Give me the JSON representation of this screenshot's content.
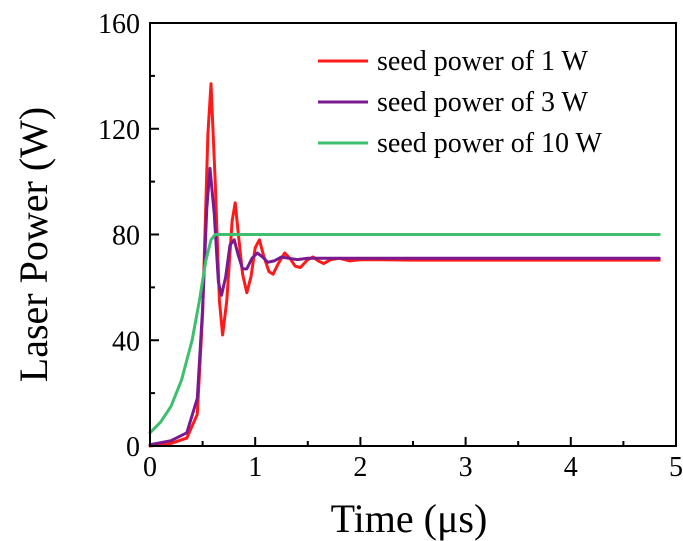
{
  "chart_data": {
    "type": "line",
    "title": "",
    "xlabel": "Time (μs)",
    "ylabel": "Laser Power (W)",
    "xlim": [
      0,
      5
    ],
    "ylim": [
      0,
      160
    ],
    "xticks": [
      0,
      1,
      2,
      3,
      4,
      5
    ],
    "yticks": [
      0,
      40,
      80,
      120,
      160
    ],
    "xtick_labels": [
      "0",
      "1",
      "2",
      "3",
      "4",
      "5"
    ],
    "ytick_labels": [
      "0",
      "40",
      "80",
      "120",
      "160"
    ],
    "grid": false,
    "legend_position": "top-right",
    "series": [
      {
        "name": "seed power of 1 W",
        "color": "#ff1a1a",
        "points": [
          [
            0,
            0
          ],
          [
            0.2,
            1
          ],
          [
            0.35,
            3
          ],
          [
            0.45,
            12
          ],
          [
            0.5,
            50
          ],
          [
            0.55,
            118
          ],
          [
            0.58,
            137
          ],
          [
            0.62,
            100
          ],
          [
            0.66,
            55
          ],
          [
            0.69,
            42
          ],
          [
            0.73,
            55
          ],
          [
            0.78,
            85
          ],
          [
            0.81,
            92
          ],
          [
            0.84,
            80
          ],
          [
            0.88,
            65
          ],
          [
            0.92,
            58
          ],
          [
            0.96,
            64
          ],
          [
            1.0,
            75
          ],
          [
            1.04,
            78
          ],
          [
            1.08,
            72
          ],
          [
            1.13,
            66
          ],
          [
            1.17,
            65
          ],
          [
            1.22,
            69
          ],
          [
            1.28,
            73
          ],
          [
            1.33,
            71
          ],
          [
            1.38,
            68
          ],
          [
            1.43,
            67.5
          ],
          [
            1.5,
            70.5
          ],
          [
            1.55,
            71.5
          ],
          [
            1.6,
            70
          ],
          [
            1.65,
            69
          ],
          [
            1.72,
            70.5
          ],
          [
            1.8,
            71
          ],
          [
            1.9,
            70
          ],
          [
            2.0,
            70.5
          ],
          [
            2.5,
            70.3
          ],
          [
            3.0,
            70.3
          ],
          [
            3.5,
            70.3
          ],
          [
            4.0,
            70.3
          ],
          [
            4.5,
            70.3
          ],
          [
            4.84,
            70.3
          ]
        ]
      },
      {
        "name": "seed power of 3 W",
        "color": "#7a1a8e",
        "points": [
          [
            0,
            0.5
          ],
          [
            0.2,
            2
          ],
          [
            0.35,
            5
          ],
          [
            0.45,
            18
          ],
          [
            0.5,
            52
          ],
          [
            0.54,
            90
          ],
          [
            0.57,
            105
          ],
          [
            0.61,
            88
          ],
          [
            0.65,
            62
          ],
          [
            0.68,
            57
          ],
          [
            0.72,
            64
          ],
          [
            0.76,
            76
          ],
          [
            0.8,
            78
          ],
          [
            0.84,
            72
          ],
          [
            0.88,
            67
          ],
          [
            0.92,
            67
          ],
          [
            0.97,
            71
          ],
          [
            1.02,
            73
          ],
          [
            1.07,
            71.5
          ],
          [
            1.12,
            69.5
          ],
          [
            1.18,
            70
          ],
          [
            1.25,
            71.5
          ],
          [
            1.32,
            71
          ],
          [
            1.4,
            70.5
          ],
          [
            1.5,
            71
          ],
          [
            2.0,
            71
          ],
          [
            2.5,
            71
          ],
          [
            3.0,
            71
          ],
          [
            3.5,
            71
          ],
          [
            4.0,
            71
          ],
          [
            4.5,
            71
          ],
          [
            4.84,
            71
          ]
        ]
      },
      {
        "name": "seed power of 10 W",
        "color": "#3dbf6e",
        "points": [
          [
            0,
            5
          ],
          [
            0.1,
            9
          ],
          [
            0.2,
            15
          ],
          [
            0.3,
            25
          ],
          [
            0.4,
            40
          ],
          [
            0.47,
            55
          ],
          [
            0.53,
            70
          ],
          [
            0.58,
            78
          ],
          [
            0.62,
            80
          ],
          [
            0.7,
            80
          ],
          [
            1.0,
            80
          ],
          [
            1.5,
            80
          ],
          [
            2.0,
            80
          ],
          [
            2.5,
            80
          ],
          [
            3.0,
            80
          ],
          [
            3.5,
            80
          ],
          [
            4.0,
            80
          ],
          [
            4.5,
            80
          ],
          [
            4.84,
            80
          ]
        ]
      }
    ]
  }
}
